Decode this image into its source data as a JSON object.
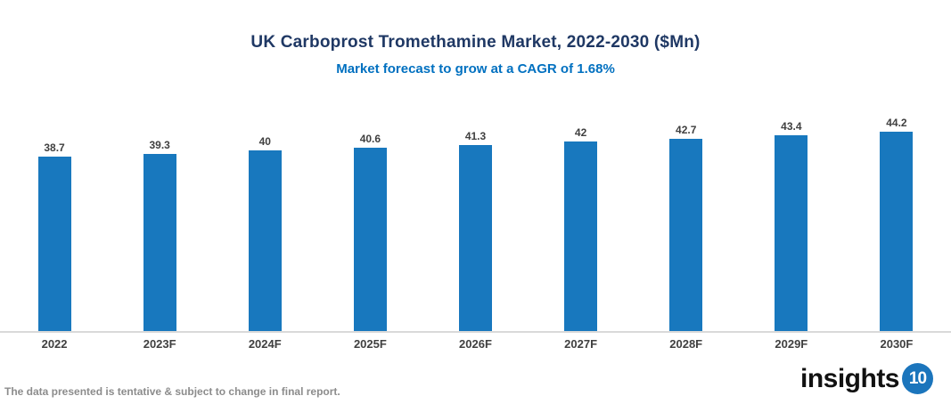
{
  "header": {
    "title": "UK Carboprost Tromethamine Market, 2022-2030 ($Mn)",
    "subtitle": "Market forecast to grow at a CAGR of 1.68%"
  },
  "chart_data": {
    "type": "bar",
    "categories": [
      "2022",
      "2023F",
      "2024F",
      "2025F",
      "2026F",
      "2027F",
      "2028F",
      "2029F",
      "2030F"
    ],
    "values": [
      38.7,
      39.3,
      40,
      40.6,
      41.3,
      42,
      42.7,
      43.4,
      44.2
    ],
    "value_labels": [
      "38.7",
      "39.3",
      "40",
      "40.6",
      "41.3",
      "42",
      "42.7",
      "43.4",
      "44.2"
    ],
    "title": "UK Carboprost Tromethamine Market, 2022-2030 ($Mn)",
    "subtitle": "Market forecast to grow at a CAGR of 1.68%",
    "xlabel": "",
    "ylabel": "",
    "ylim": [
      0,
      46
    ],
    "grid": false,
    "legend": false,
    "bar_color": "#1878BE"
  },
  "footer": {
    "note": "The data presented is tentative & subject to change in final report.",
    "logo_text": "insights",
    "logo_badge": "10"
  },
  "colors": {
    "bar": "#1878BE",
    "title": "#1F3864",
    "subtitle": "#0070C0",
    "value_label": "#404040",
    "axis_label": "#404040",
    "axis_line": "#D9D9D9",
    "note": "#8C8C8C",
    "logo_badge_bg": "#1B75BC",
    "logo_text_color": "#111111"
  }
}
